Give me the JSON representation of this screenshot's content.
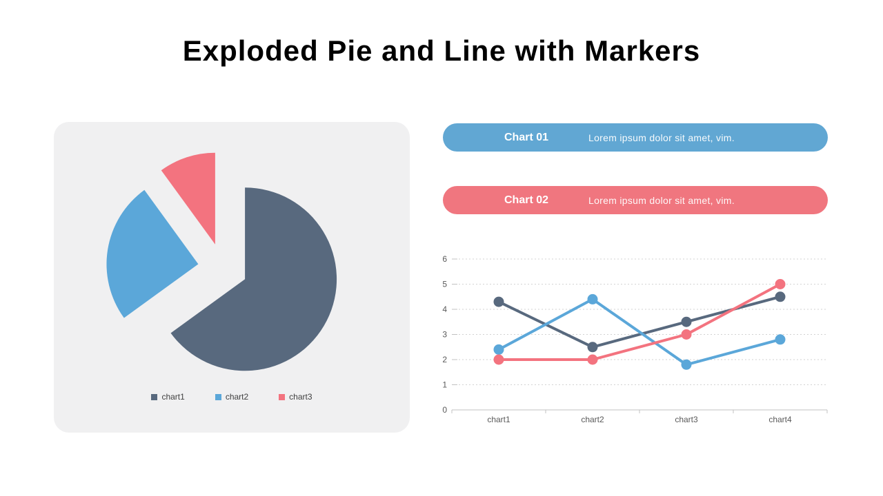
{
  "title": "Exploded Pie and Line with Markers",
  "colors": {
    "series_dark": "#58697e",
    "series_blue": "#5ba7d9",
    "series_red": "#f3737f",
    "banner_blue": "#61a7d3",
    "banner_red": "#f0767f",
    "panel_bg": "#f0f0f1",
    "grid": "#d2d2d2",
    "axis": "#c0c0c0",
    "tick_text": "#595959",
    "legend_text": "#3f3f3f"
  },
  "banners": [
    {
      "label": "Chart 01",
      "text": "Lorem ipsum dolor sit amet, vim.",
      "color": "#61a7d3"
    },
    {
      "label": "Chart 02",
      "text": "Lorem ipsum dolor sit amet, vim.",
      "color": "#f0767f"
    }
  ],
  "chart_data": [
    {
      "type": "pie",
      "exploded": true,
      "labels": [
        "chart1",
        "chart2",
        "chart3"
      ],
      "values": [
        65,
        25,
        10
      ],
      "colors": [
        "#58697e",
        "#5ba7d9",
        "#f3737f"
      ],
      "start_angle_deg": 0,
      "clockwise": true,
      "legend_position": "bottom"
    },
    {
      "type": "line",
      "categories": [
        "chart1",
        "chart2",
        "chart3",
        "chart4"
      ],
      "series": [
        {
          "name": "chart1",
          "color": "#58697e",
          "values": [
            4.3,
            2.5,
            3.5,
            4.5
          ]
        },
        {
          "name": "chart2",
          "color": "#5ba7d9",
          "values": [
            2.4,
            4.4,
            1.8,
            2.8
          ]
        },
        {
          "name": "chart3",
          "color": "#f3737f",
          "values": [
            2.0,
            2.0,
            3.0,
            5.0
          ]
        }
      ],
      "ylim": [
        0,
        6
      ],
      "ytick_step": 1,
      "grid": "horizontal-dotted",
      "grid_color": "#d2d2d2",
      "axis_color": "#c0c0c0",
      "markers": true,
      "legend_position": "none"
    }
  ]
}
